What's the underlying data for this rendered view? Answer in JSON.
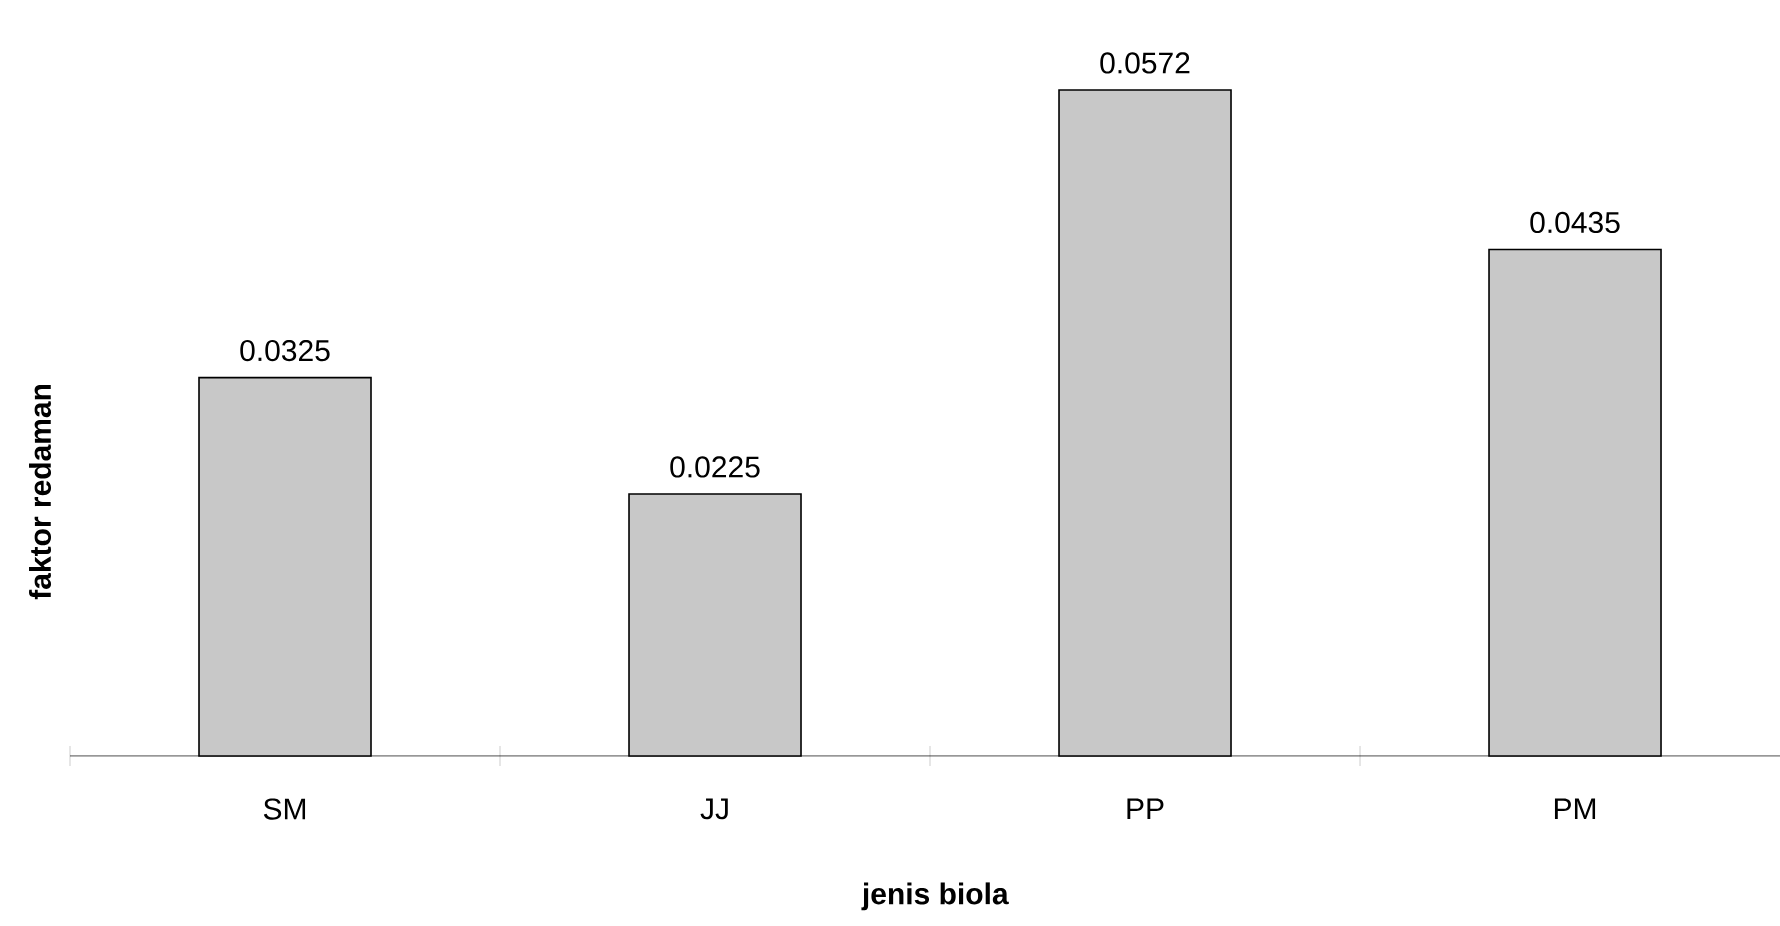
{
  "chart_data": {
    "type": "bar",
    "xlabel": "jenis biola",
    "ylabel": "faktor redaman",
    "categories": [
      "SM",
      "JJ",
      "PP",
      "PM"
    ],
    "values": [
      0.0325,
      0.0225,
      0.0572,
      0.0435
    ],
    "color": "#c8c8c8",
    "data_labels": true
  }
}
